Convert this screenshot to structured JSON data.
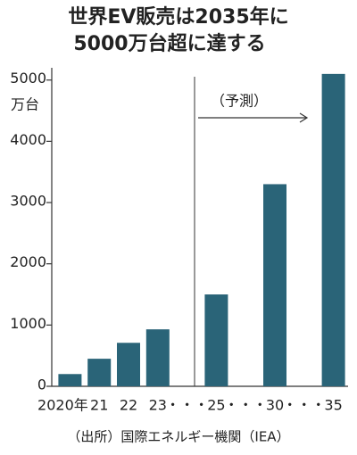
{
  "chart_data": {
    "type": "bar",
    "title": [
      "世界EV販売は2035年に",
      "5000万台超に達する"
    ],
    "y_unit": "万台",
    "annotation": "（予測）",
    "source": "（出所）国際エネルギー機関（IEA）",
    "categories": [
      "2020年",
      "21",
      "22",
      "23",
      "・・・",
      "25",
      "・・・",
      "30",
      "・・・",
      "35"
    ],
    "values": [
      200,
      450,
      710,
      930,
      null,
      1500,
      null,
      3300,
      null,
      5100
    ],
    "color": "#2a6478",
    "ylim": [
      0,
      5200
    ],
    "yticks": [
      0,
      1000,
      2000,
      3000,
      4000,
      5000
    ],
    "grid": false
  }
}
